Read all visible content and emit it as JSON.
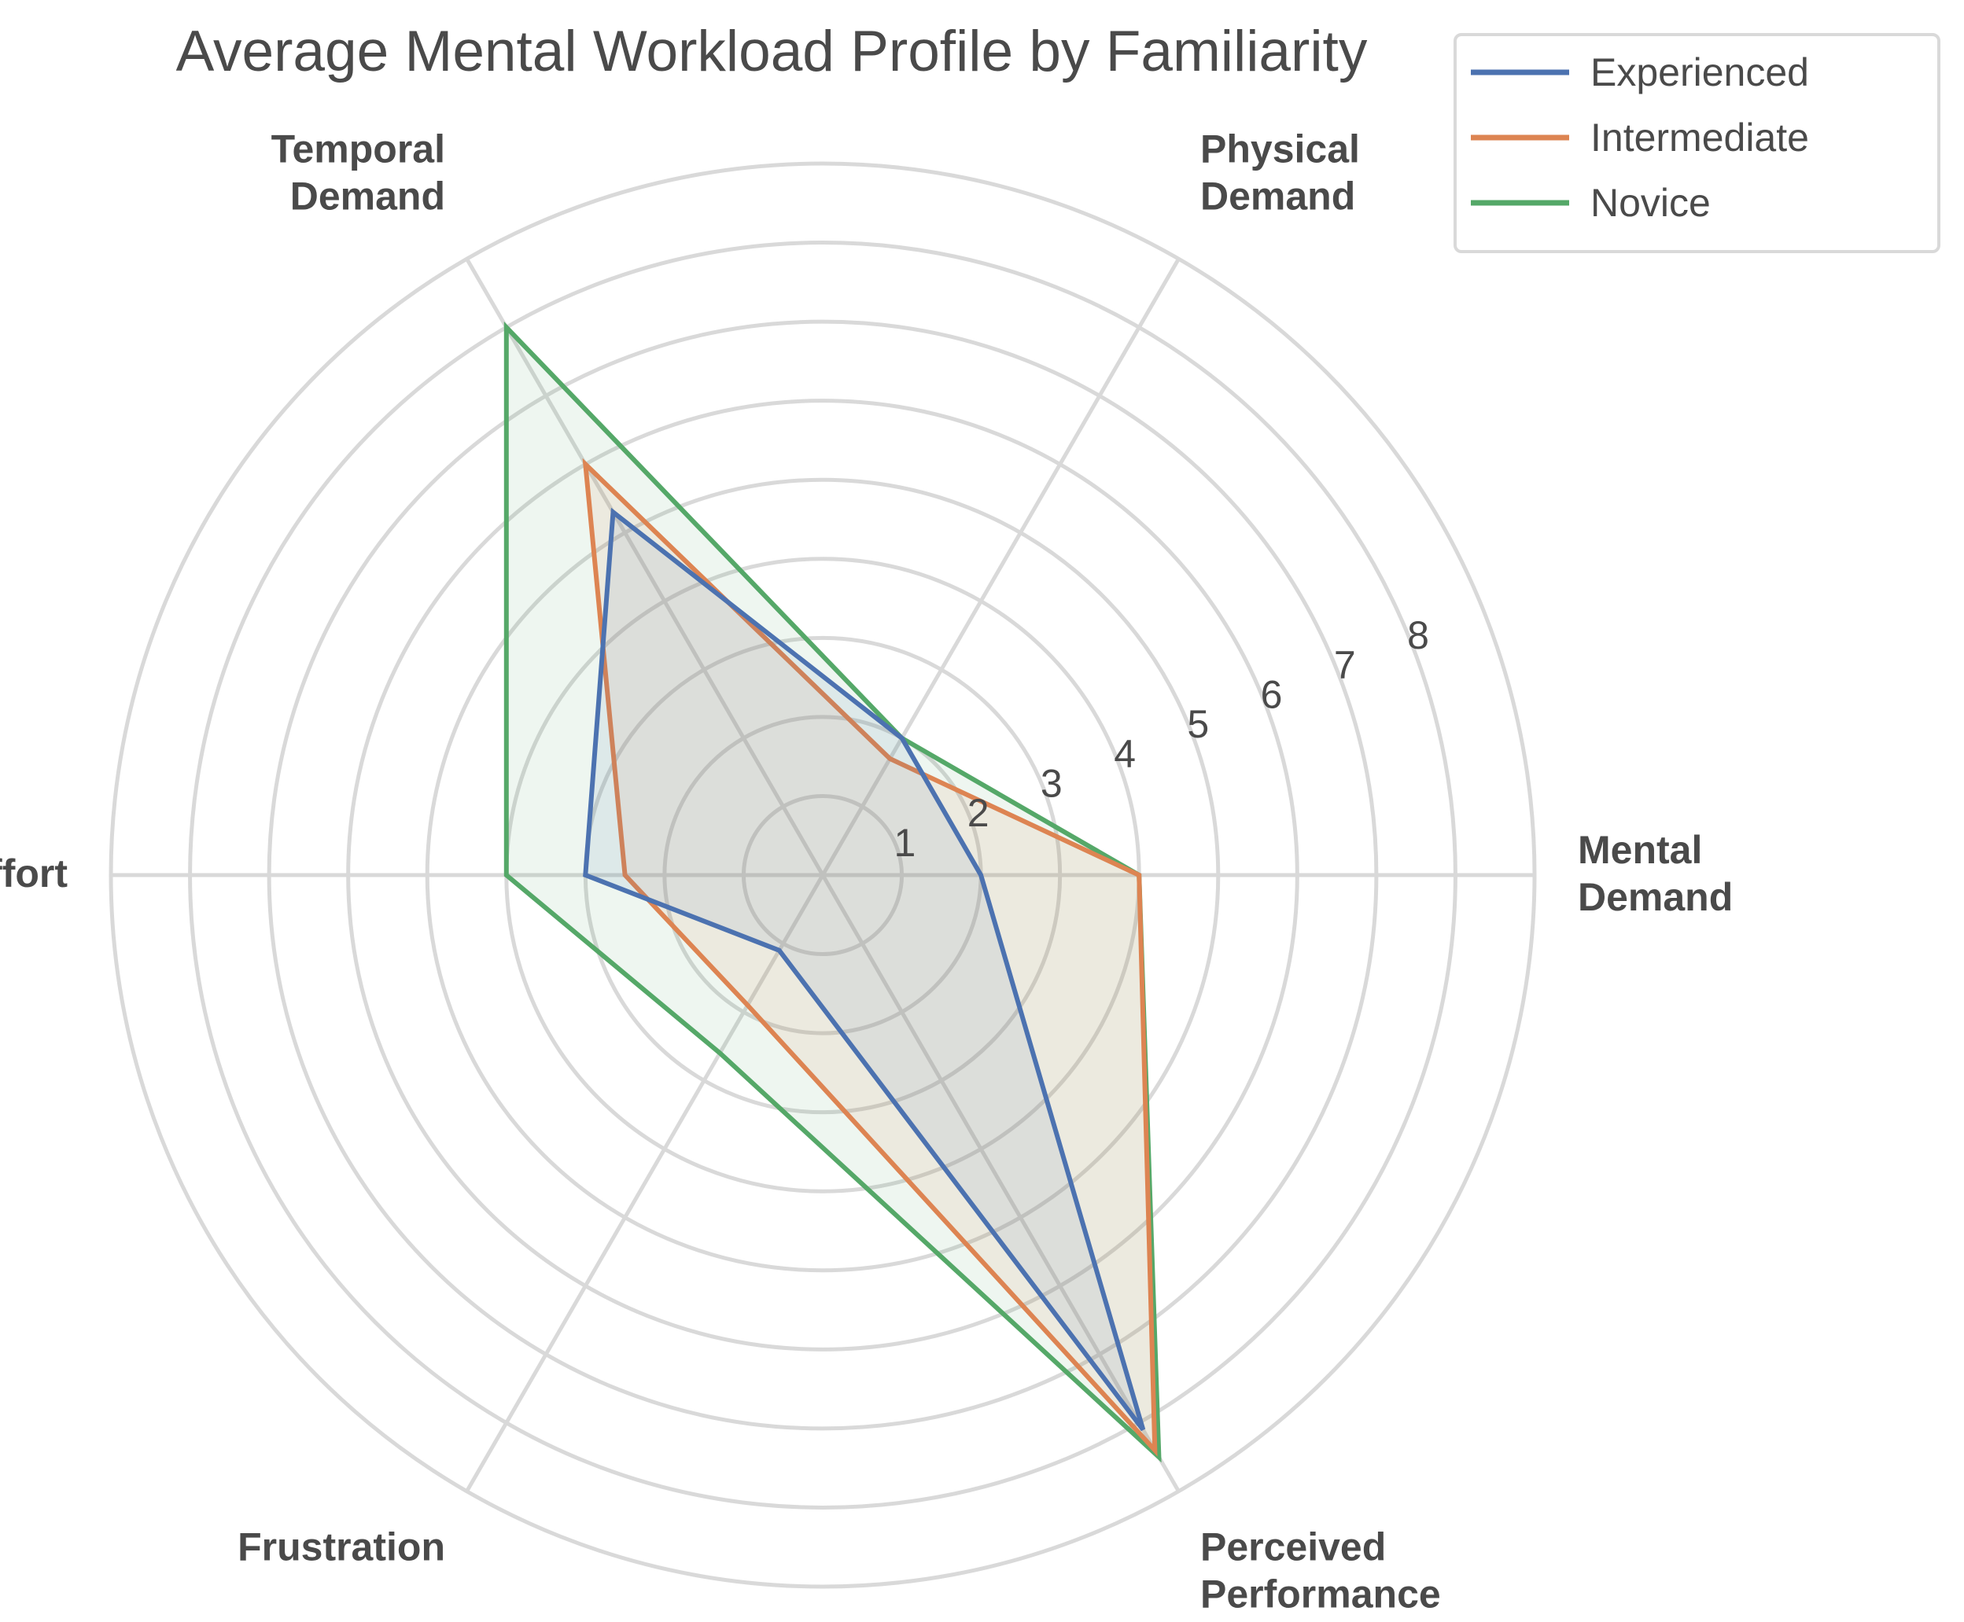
{
  "chart_data": {
    "type": "radar",
    "title": "Average Mental Workload Profile by Familiarity",
    "axes": [
      [
        "Mental",
        "Demand"
      ],
      [
        "Physical",
        "Demand"
      ],
      [
        "Temporal",
        "Demand"
      ],
      [
        "Effort"
      ],
      [
        "Frustration"
      ],
      [
        "Perceived",
        "Performance"
      ]
    ],
    "rmax": 9,
    "ticks": [
      1,
      2,
      3,
      4,
      5,
      6,
      7,
      8
    ],
    "grid": true,
    "legend_position": "top-right",
    "series": [
      {
        "name": "Experienced",
        "color": "#4c72b0",
        "values": [
          2.0,
          2.0,
          5.3,
          3.0,
          1.1,
          8.1
        ]
      },
      {
        "name": "Intermediate",
        "color": "#dd8452",
        "values": [
          4.0,
          1.7,
          6.0,
          2.5,
          1.9,
          8.4
        ]
      },
      {
        "name": "Novice",
        "color": "#55a868",
        "values": [
          4.0,
          2.0,
          8.0,
          4.0,
          2.6,
          8.5
        ]
      }
    ]
  }
}
